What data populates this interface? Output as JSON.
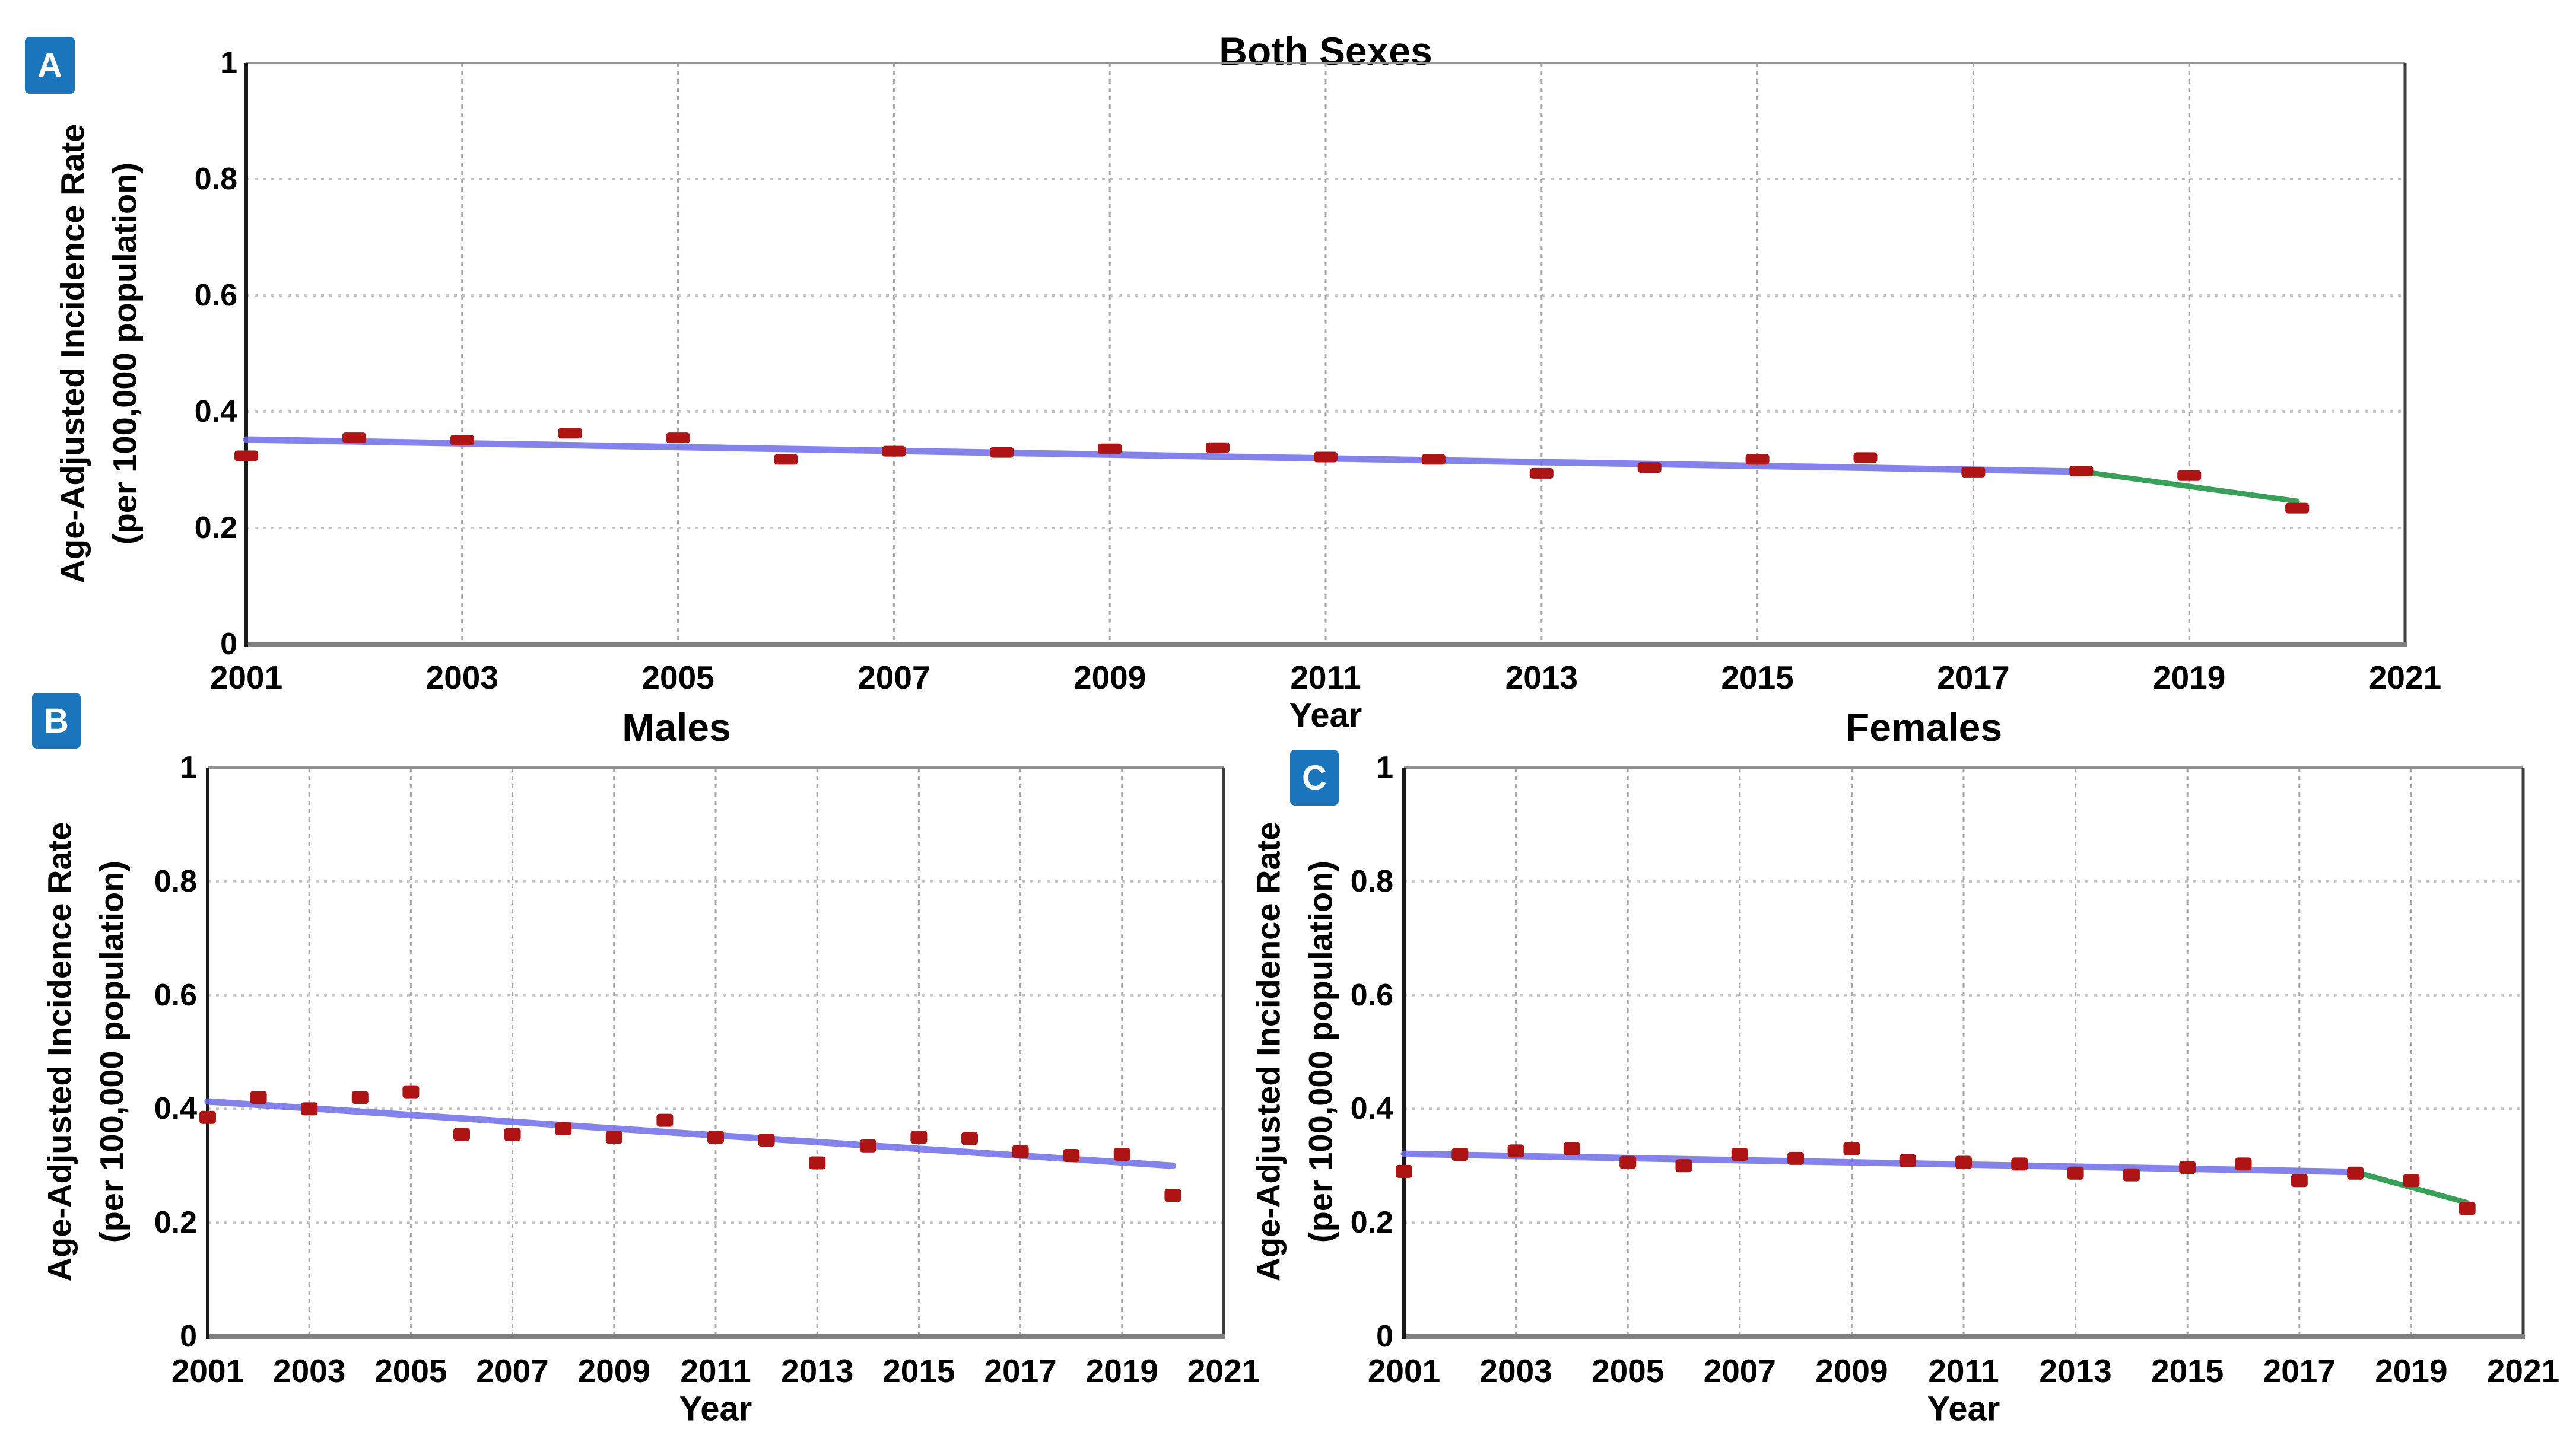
{
  "figure": {
    "background": "#ffffff",
    "badge_color": "#1b75bc",
    "badge_text_color": "#ffffff",
    "marker_color": "#ae1414",
    "trend_blue_color": "#6e6ee8",
    "trend_green_color": "#2f9b52",
    "gridline_vertical_color": "#a8a8a8",
    "gridline_horizontal_color": "#c6c6c6"
  },
  "chart_data": [
    {
      "id": "A",
      "type": "scatter",
      "panel_label": "A",
      "title": "Both Sexes",
      "xlabel": "Year",
      "ylabel_line1": "Age-Adjusted Incidence Rate",
      "ylabel_line2": "(per 100,000 population)",
      "xlim": [
        2001,
        2021
      ],
      "ylim": [
        0,
        1
      ],
      "grid": true,
      "legend": false,
      "xtick_labels": [
        "2001",
        "2003",
        "2005",
        "2007",
        "2009",
        "2011",
        "2013",
        "2015",
        "2017",
        "2019",
        "2021"
      ],
      "xtick_values": [
        2001,
        2003,
        2005,
        2007,
        2009,
        2011,
        2013,
        2015,
        2017,
        2019,
        2021
      ],
      "ytick_labels": [
        "1",
        "0.8",
        "0.6",
        "0.4",
        "0.2",
        "0"
      ],
      "ytick_values": [
        1,
        0.8,
        0.6,
        0.4,
        0.2,
        0
      ],
      "years": [
        2001,
        2002,
        2003,
        2004,
        2005,
        2006,
        2007,
        2008,
        2009,
        2010,
        2011,
        2012,
        2013,
        2014,
        2015,
        2016,
        2017,
        2018,
        2019,
        2020
      ],
      "values": [
        0.324,
        0.355,
        0.351,
        0.363,
        0.355,
        0.318,
        0.332,
        0.33,
        0.336,
        0.338,
        0.322,
        0.318,
        0.294,
        0.304,
        0.318,
        0.321,
        0.296,
        0.298,
        0.29,
        0.234
      ],
      "trend_segments": [
        {
          "name": "trend-2001-2018",
          "color_key": "trend_blue_color",
          "x": [
            2001,
            2018
          ],
          "y": [
            0.352,
            0.297
          ]
        },
        {
          "name": "trend-2018-2020",
          "color_key": "trend_green_color",
          "x": [
            2018,
            2020
          ],
          "y": [
            0.297,
            0.246
          ]
        }
      ]
    },
    {
      "id": "B",
      "type": "scatter",
      "panel_label": "B",
      "title": "Males",
      "xlabel": "Year",
      "ylabel_line1": "Age-Adjusted Incidence Rate",
      "ylabel_line2": "(per 100,000 population)",
      "xlim": [
        2001,
        2021
      ],
      "ylim": [
        0,
        1
      ],
      "grid": true,
      "legend": false,
      "xtick_labels": [
        "2001",
        "2003",
        "2005",
        "2007",
        "2009",
        "2011",
        "2013",
        "2015",
        "2017",
        "2019",
        "2021"
      ],
      "xtick_values": [
        2001,
        2003,
        2005,
        2007,
        2009,
        2011,
        2013,
        2015,
        2017,
        2019,
        2021
      ],
      "ytick_labels": [
        "1",
        "0.8",
        "0.6",
        "0.4",
        "0.2",
        "0"
      ],
      "ytick_values": [
        1,
        0.8,
        0.6,
        0.4,
        0.2,
        0
      ],
      "years": [
        2001,
        2002,
        2003,
        2004,
        2005,
        2006,
        2007,
        2008,
        2009,
        2010,
        2011,
        2012,
        2013,
        2014,
        2015,
        2016,
        2017,
        2018,
        2019,
        2020
      ],
      "values": [
        0.385,
        0.42,
        0.4,
        0.42,
        0.43,
        0.355,
        0.355,
        0.365,
        0.35,
        0.38,
        0.35,
        0.345,
        0.305,
        0.335,
        0.35,
        0.348,
        0.325,
        0.318,
        0.32,
        0.248
      ],
      "trend_segments": [
        {
          "name": "trend-2001-2020",
          "color_key": "trend_blue_color",
          "x": [
            2001,
            2020
          ],
          "y": [
            0.413,
            0.3
          ]
        }
      ]
    },
    {
      "id": "C",
      "type": "scatter",
      "panel_label": "C",
      "title": "Females",
      "xlabel": "Year",
      "ylabel_line1": "Age-Adjusted Incidence Rate",
      "ylabel_line2": "(per 100,000 population)",
      "xlim": [
        2001,
        2021
      ],
      "ylim": [
        0,
        1
      ],
      "grid": true,
      "legend": false,
      "xtick_labels": [
        "2001",
        "2003",
        "2005",
        "2007",
        "2009",
        "2011",
        "2013",
        "2015",
        "2017",
        "2019",
        "2021"
      ],
      "xtick_values": [
        2001,
        2003,
        2005,
        2007,
        2009,
        2011,
        2013,
        2015,
        2017,
        2019,
        2021
      ],
      "ytick_labels": [
        "1",
        "0.8",
        "0.6",
        "0.4",
        "0.2",
        "0"
      ],
      "ytick_values": [
        1,
        0.8,
        0.6,
        0.4,
        0.2,
        0
      ],
      "years": [
        2001,
        2002,
        2003,
        2004,
        2005,
        2006,
        2007,
        2008,
        2009,
        2010,
        2011,
        2012,
        2013,
        2014,
        2015,
        2016,
        2017,
        2018,
        2019,
        2020
      ],
      "values": [
        0.29,
        0.32,
        0.326,
        0.33,
        0.306,
        0.3,
        0.32,
        0.313,
        0.33,
        0.309,
        0.306,
        0.303,
        0.287,
        0.284,
        0.297,
        0.303,
        0.274,
        0.287,
        0.274,
        0.225
      ],
      "trend_segments": [
        {
          "name": "trend-2001-2018",
          "color_key": "trend_blue_color",
          "x": [
            2001,
            2018
          ],
          "y": [
            0.321,
            0.289
          ]
        },
        {
          "name": "trend-2018-2020",
          "color_key": "trend_green_color",
          "x": [
            2018,
            2020
          ],
          "y": [
            0.289,
            0.235
          ]
        }
      ]
    }
  ]
}
